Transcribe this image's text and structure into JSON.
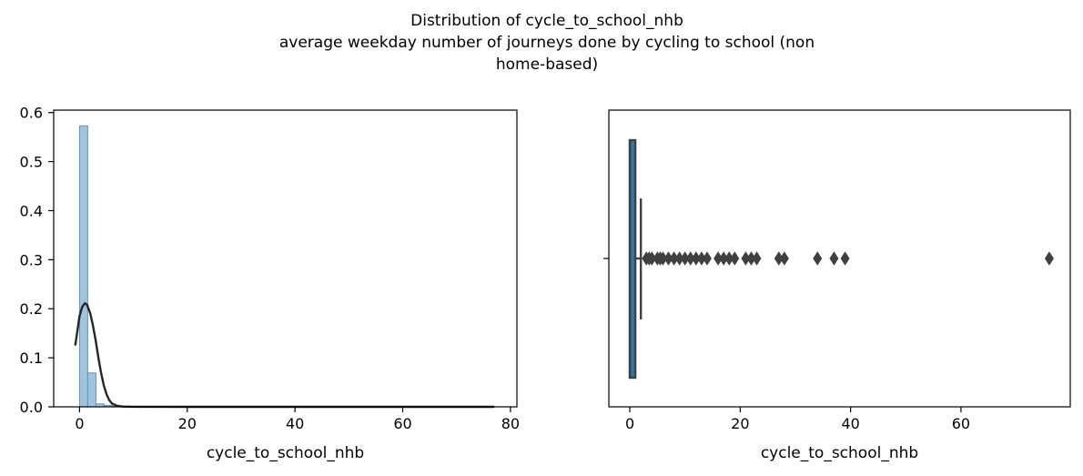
{
  "figure": {
    "title_lines": [
      "Distribution of cycle_to_school_nhb",
      "average weekday number of journeys done by cycling to school (non",
      "home-based)"
    ]
  },
  "chart_data": [
    {
      "type": "histogram",
      "xlabel": "cycle_to_school_nhb",
      "ylabel": "",
      "xlim": [
        -4.8,
        81.2
      ],
      "ylim": [
        0,
        0.605
      ],
      "xticks": [
        0,
        20,
        40,
        60,
        80
      ],
      "yticks": [
        0.0,
        0.1,
        0.2,
        0.3,
        0.4,
        0.5,
        0.6
      ],
      "bar_color": "#9ec4e0",
      "bar_edge_color": "#6f8fa8",
      "kde_color": "#262626",
      "bins": [
        {
          "x0": 0.0,
          "x1": 1.52,
          "density": 0.573
        },
        {
          "x0": 1.52,
          "x1": 3.04,
          "density": 0.069
        },
        {
          "x0": 3.04,
          "x1": 4.56,
          "density": 0.006
        },
        {
          "x0": 4.56,
          "x1": 6.08,
          "density": 0.003
        },
        {
          "x0": 6.08,
          "x1": 7.6,
          "density": 0.0015
        },
        {
          "x0": 7.6,
          "x1": 9.12,
          "density": 0.001
        },
        {
          "x0": 9.12,
          "x1": 10.64,
          "density": 0.0008
        },
        {
          "x0": 10.64,
          "x1": 12.16,
          "density": 0.0005
        }
      ],
      "kde": {
        "x": [
          -0.8,
          0,
          0.5,
          1,
          1.4,
          2,
          2.5,
          3,
          3.5,
          4,
          4.5,
          5,
          5.5,
          6,
          7,
          8,
          10,
          20,
          40,
          60,
          77
        ],
        "y": [
          0.125,
          0.185,
          0.204,
          0.211,
          0.208,
          0.19,
          0.165,
          0.135,
          0.1,
          0.069,
          0.044,
          0.026,
          0.014,
          0.007,
          0.002,
          0.0006,
          0.0002,
          0.0,
          0.0,
          0.0,
          0.0
        ]
      }
    },
    {
      "type": "boxplot",
      "xlabel": "cycle_to_school_nhb",
      "ylabel": "",
      "xlim": [
        -3.8,
        79.8
      ],
      "xticks": [
        0,
        20,
        40,
        60
      ],
      "box_color": "#2e77a8",
      "line_color": "#404040",
      "box": {
        "q1": 0,
        "median": 0,
        "q3": 1,
        "whisker_low": 0,
        "whisker_high": 2
      },
      "outliers": [
        3,
        3.5,
        4,
        5,
        5.5,
        6,
        7,
        8,
        9,
        10,
        11,
        12,
        13,
        14,
        16,
        17,
        18,
        19,
        21,
        22,
        23,
        27,
        28,
        34,
        37,
        39,
        76
      ]
    }
  ]
}
